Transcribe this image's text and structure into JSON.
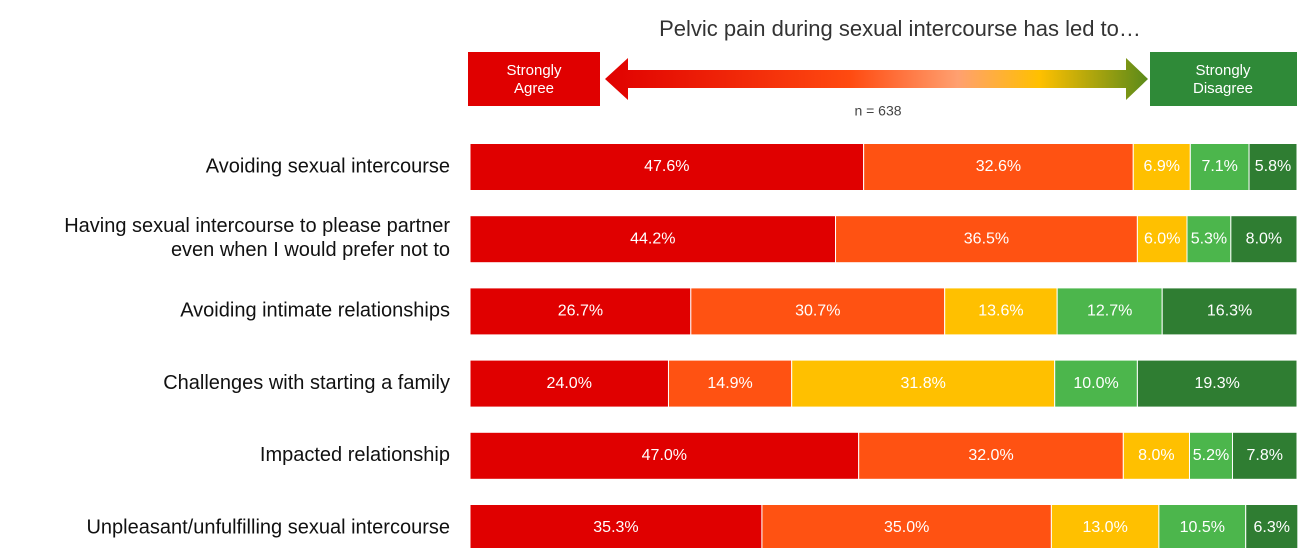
{
  "chart_data": {
    "type": "stacked_bar_horizontal",
    "title": "Pelvic pain during sexual intercourse has led to…",
    "annotation": "n = 638",
    "legend": {
      "left": "Strongly\nAgree",
      "right": "Strongly\nDisagree"
    },
    "categories": [
      "Avoiding sexual intercourse",
      "Having sexual intercourse to please partner\neven when I would prefer not to",
      "Avoiding intimate relationships",
      "Challenges with starting a family",
      "Impacted relationship",
      "Unpleasant/unfulfilling sexual intercourse"
    ],
    "xlim": [
      0,
      100
    ],
    "series": [
      {
        "color": "#e00000",
        "values": [
          47.6,
          44.2,
          26.7,
          24.0,
          47.0,
          35.3
        ],
        "value_labels": [
          "47.6%",
          "44.2%",
          "26.7%",
          "24.0%",
          "47.0%",
          "35.3%"
        ]
      },
      {
        "color": "#ff5212",
        "values": [
          32.6,
          36.5,
          30.7,
          14.9,
          32.0,
          35.0
        ],
        "value_labels": [
          "32.6%",
          "36.5%",
          "30.7%",
          "14.9%",
          "32.0%",
          "35.0%"
        ]
      },
      {
        "color": "#ffc000",
        "values": [
          6.9,
          6.0,
          13.6,
          31.8,
          8.0,
          13.0
        ],
        "value_labels": [
          "6.9%",
          "6.0%",
          "13.6%",
          "31.8%",
          "8.0%",
          "13.0%"
        ]
      },
      {
        "color": "#4cb64c",
        "values": [
          7.1,
          5.3,
          12.7,
          10.0,
          5.2,
          10.5
        ],
        "value_labels": [
          "7.1%",
          "5.3%",
          "12.7%",
          "10.0%",
          "5.2%",
          "10.5%"
        ]
      },
      {
        "color": "#2f7d32",
        "values": [
          5.8,
          8.0,
          16.3,
          19.3,
          7.8,
          6.3
        ],
        "value_labels": [
          "5.8%",
          "8.0%",
          "16.3%",
          "19.3%",
          "7.8%",
          "6.3%"
        ]
      }
    ]
  }
}
